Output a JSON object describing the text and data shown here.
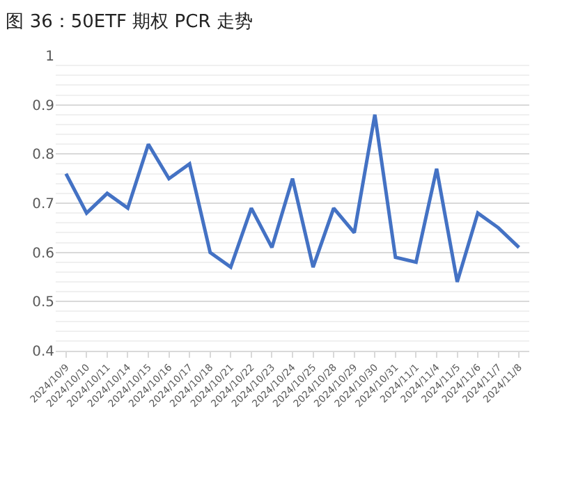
{
  "chart_data": {
    "type": "line",
    "title": "图 36：50ETF 期权 PCR 走势",
    "categories": [
      "2024/10/9",
      "2024/10/10",
      "2024/10/11",
      "2024/10/14",
      "2024/10/15",
      "2024/10/16",
      "2024/10/17",
      "2024/10/18",
      "2024/10/21",
      "2024/10/22",
      "2024/10/23",
      "2024/10/24",
      "2024/10/25",
      "2024/10/28",
      "2024/10/29",
      "2024/10/30",
      "2024/10/31",
      "2024/11/1",
      "2024/11/4",
      "2024/11/5",
      "2024/11/6",
      "2024/11/7",
      "2024/11/8"
    ],
    "series": [
      {
        "color": "#4472c4",
        "values": [
          0.76,
          0.68,
          0.72,
          0.69,
          0.82,
          0.75,
          0.78,
          0.6,
          0.57,
          0.69,
          0.61,
          0.75,
          0.57,
          0.69,
          0.64,
          0.88,
          0.59,
          0.58,
          0.77,
          0.54,
          0.68,
          0.65,
          0.61
        ]
      }
    ],
    "ylim": [
      0.4,
      1
    ],
    "yticks": [
      0.4,
      0.5,
      0.6,
      0.7,
      0.8,
      0.9,
      1
    ],
    "grid": "y",
    "marker": "none",
    "line_style": "solid"
  }
}
